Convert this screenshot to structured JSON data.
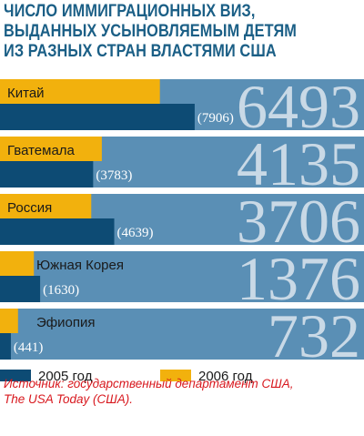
{
  "title_lines": [
    "ЧИСЛО ИММИГРАЦИОННЫХ ВИЗ,",
    "ВЫДАННЫХ УСЫНОВЛЯЕМЫМ ДЕТЯМ",
    "ИЗ РАЗНЫХ СТРАН ВЛАСТЯМИ США"
  ],
  "source_lines": [
    "Источник: государственный департамент США,",
    "The USA Today (США)."
  ],
  "colors": {
    "panel": "#5a8fb5",
    "series_2005": "#0d4b74",
    "series_2006": "#f2b10d",
    "big_number": "#c9d9e6",
    "title": "#1b5f86",
    "source": "#d8181e"
  },
  "chart_data": {
    "type": "bar",
    "categories": [
      "Китай",
      "Гватемала",
      "Россия",
      "Южная Корея",
      "Эфиопия"
    ],
    "series": [
      {
        "name": "2005 год",
        "values": [
          7906,
          3783,
          4639,
          1630,
          441
        ]
      },
      {
        "name": "2006 год",
        "values": [
          6493,
          4135,
          3706,
          1376,
          732
        ]
      }
    ],
    "value_labels_2005": [
      "(7906)",
      "(3783)",
      "(4639)",
      "(1630)",
      "(441)"
    ],
    "value_labels_2006": [
      "6493",
      "4135",
      "3706",
      "1376",
      "732"
    ],
    "legend": [
      "2005 год",
      "2006 год"
    ],
    "legend_position": "bottom"
  }
}
